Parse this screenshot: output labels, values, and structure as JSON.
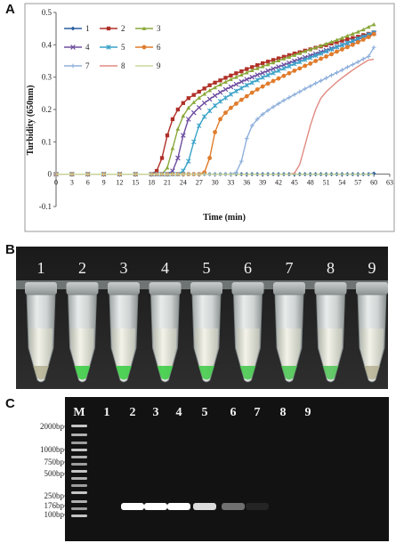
{
  "panels": {
    "a": {
      "letter": "A"
    },
    "b": {
      "letter": "B"
    },
    "c": {
      "letter": "C"
    }
  },
  "chart_data": {
    "type": "line",
    "xlabel": "Time (min)",
    "ylabel": "Turbidity (650nm)",
    "xlim": [
      0,
      63
    ],
    "ylim": [
      -0.1,
      0.5
    ],
    "xticks": [
      "0",
      "3",
      "6",
      "9",
      "12",
      "15",
      "18",
      "21",
      "24",
      "27",
      "30",
      "33",
      "36",
      "39",
      "42",
      "45",
      "48",
      "51",
      "54",
      "57",
      "60",
      "63"
    ],
    "yticks": [
      "-0.1",
      "0",
      "0.1",
      "0.2",
      "0.3",
      "0.4",
      "0.5"
    ],
    "grid": false,
    "legend_position": "top-left",
    "x": [
      0,
      3,
      6,
      9,
      12,
      15,
      18,
      19,
      20,
      21,
      22,
      23,
      24,
      25,
      26,
      27,
      28,
      29,
      30,
      31,
      32,
      33,
      34,
      35,
      36,
      37,
      38,
      39,
      40,
      41,
      42,
      43,
      44,
      45,
      46,
      47,
      48,
      49,
      50,
      51,
      52,
      53,
      54,
      55,
      56,
      57,
      58,
      59,
      60
    ],
    "series": [
      {
        "name": "1",
        "color": "#2d5fa0",
        "marker": "diamond",
        "values": [
          0,
          0,
          0,
          0,
          0,
          0,
          0,
          0,
          0,
          0,
          0,
          0,
          0,
          0,
          0,
          0,
          0,
          0,
          0,
          0,
          0,
          0,
          0,
          0,
          0,
          0,
          0,
          0,
          0,
          0,
          0,
          0,
          0,
          0,
          0,
          0,
          0,
          0,
          0,
          0,
          0,
          0,
          0,
          0,
          0,
          0,
          0,
          0,
          0.002
        ]
      },
      {
        "name": "2",
        "color": "#b03028",
        "marker": "square",
        "values": [
          0,
          0,
          0,
          0,
          0,
          0,
          0,
          0.01,
          0.05,
          0.12,
          0.17,
          0.2,
          0.22,
          0.235,
          0.245,
          0.255,
          0.265,
          0.275,
          0.283,
          0.29,
          0.298,
          0.305,
          0.312,
          0.318,
          0.325,
          0.331,
          0.337,
          0.343,
          0.348,
          0.353,
          0.358,
          0.363,
          0.368,
          0.373,
          0.377,
          0.382,
          0.386,
          0.391,
          0.395,
          0.399,
          0.404,
          0.408,
          0.413,
          0.417,
          0.421,
          0.425,
          0.43,
          0.434,
          0.438
        ]
      },
      {
        "name": "3",
        "color": "#8aa83a",
        "marker": "triangle",
        "values": [
          0,
          0,
          0,
          0,
          0,
          0,
          0,
          0,
          0,
          0.02,
          0.08,
          0.14,
          0.18,
          0.205,
          0.222,
          0.236,
          0.248,
          0.259,
          0.268,
          0.277,
          0.285,
          0.293,
          0.3,
          0.307,
          0.314,
          0.321,
          0.327,
          0.333,
          0.339,
          0.345,
          0.351,
          0.357,
          0.362,
          0.368,
          0.374,
          0.38,
          0.386,
          0.391,
          0.397,
          0.403,
          0.409,
          0.415,
          0.421,
          0.428,
          0.434,
          0.44,
          0.447,
          0.455,
          0.463
        ]
      },
      {
        "name": "4",
        "color": "#6e4ea0",
        "marker": "x",
        "values": [
          0,
          0,
          0,
          0,
          0,
          0,
          0,
          0,
          0,
          0,
          0.01,
          0.05,
          0.12,
          0.17,
          0.19,
          0.206,
          0.22,
          0.232,
          0.243,
          0.253,
          0.262,
          0.27,
          0.278,
          0.286,
          0.293,
          0.3,
          0.307,
          0.313,
          0.32,
          0.326,
          0.332,
          0.338,
          0.344,
          0.35,
          0.356,
          0.361,
          0.367,
          0.372,
          0.378,
          0.383,
          0.389,
          0.394,
          0.4,
          0.405,
          0.411,
          0.417,
          0.423,
          0.429,
          0.436
        ]
      },
      {
        "name": "5",
        "color": "#3aa2c8",
        "marker": "asterisk",
        "values": [
          0,
          0,
          0,
          0,
          0,
          0,
          0,
          0,
          0,
          0,
          0,
          0,
          0.01,
          0.04,
          0.1,
          0.15,
          0.178,
          0.196,
          0.212,
          0.225,
          0.236,
          0.247,
          0.257,
          0.266,
          0.275,
          0.283,
          0.291,
          0.299,
          0.306,
          0.313,
          0.32,
          0.327,
          0.334,
          0.341,
          0.347,
          0.354,
          0.36,
          0.367,
          0.373,
          0.38,
          0.386,
          0.393,
          0.399,
          0.406,
          0.412,
          0.419,
          0.425,
          0.432,
          0.438
        ]
      },
      {
        "name": "6",
        "color": "#e07c2c",
        "marker": "circle",
        "values": [
          0,
          0,
          0,
          0,
          0,
          0,
          0,
          0,
          0,
          0,
          0,
          0,
          0,
          0,
          0,
          0,
          0.005,
          0.05,
          0.13,
          0.17,
          0.19,
          0.205,
          0.218,
          0.23,
          0.241,
          0.252,
          0.262,
          0.271,
          0.28,
          0.288,
          0.296,
          0.304,
          0.312,
          0.32,
          0.327,
          0.335,
          0.342,
          0.35,
          0.357,
          0.364,
          0.371,
          0.379,
          0.386,
          0.393,
          0.4,
          0.408,
          0.416,
          0.424,
          0.433
        ]
      },
      {
        "name": "7",
        "color": "#8fb0dc",
        "marker": "plus",
        "values": [
          0,
          0,
          0,
          0,
          0,
          0,
          0,
          0,
          0,
          0,
          0,
          0,
          0,
          0,
          0,
          0,
          0,
          0,
          0,
          0,
          0,
          0,
          0.005,
          0.04,
          0.11,
          0.15,
          0.17,
          0.185,
          0.197,
          0.208,
          0.218,
          0.228,
          0.237,
          0.246,
          0.255,
          0.264,
          0.272,
          0.281,
          0.289,
          0.297,
          0.306,
          0.314,
          0.322,
          0.331,
          0.339,
          0.347,
          0.356,
          0.364,
          0.392
        ]
      },
      {
        "name": "8",
        "color": "#e08a80",
        "marker": "none",
        "values": [
          0,
          0,
          0,
          0,
          0,
          0,
          0,
          0,
          0,
          0,
          0,
          0,
          0,
          0,
          0,
          0,
          0,
          0,
          0,
          0,
          0,
          0,
          0,
          0,
          0,
          0,
          0,
          0,
          0,
          0,
          0,
          0,
          0,
          0.003,
          0.03,
          0.09,
          0.15,
          0.2,
          0.235,
          0.255,
          0.27,
          0.285,
          0.298,
          0.31,
          0.322,
          0.333,
          0.343,
          0.353,
          0.355
        ]
      },
      {
        "name": "9",
        "color": "#c8d898",
        "marker": "none",
        "values": [
          0,
          0,
          0,
          0,
          0,
          0,
          0,
          0,
          0,
          0,
          0,
          0,
          0,
          0,
          0,
          0,
          0,
          0,
          0,
          0,
          0,
          0,
          0,
          0,
          0,
          0,
          0,
          0,
          0,
          0,
          0,
          0,
          0,
          0,
          0,
          0,
          0,
          0,
          0,
          0,
          0,
          0,
          0,
          0,
          0,
          0,
          0,
          0,
          0
        ]
      }
    ]
  },
  "tubes": {
    "labels": [
      "1",
      "2",
      "3",
      "4",
      "5",
      "6",
      "7",
      "8",
      "9"
    ],
    "green_level": [
      0.0,
      0.9,
      0.9,
      0.9,
      0.85,
      0.8,
      0.75,
      0.7,
      0.0
    ]
  },
  "gel": {
    "lane_labels": [
      "M",
      "1",
      "2",
      "3",
      "4",
      "5",
      "6",
      "7",
      "8",
      "9"
    ],
    "ladder_labels": [
      "2000bp",
      "1000bp",
      "750bp",
      "500bp",
      "250bp",
      "176bp",
      "100bp"
    ],
    "band_intensity": [
      0,
      1.0,
      1.0,
      1.0,
      0.85,
      0.4,
      0.05,
      0,
      0
    ]
  }
}
